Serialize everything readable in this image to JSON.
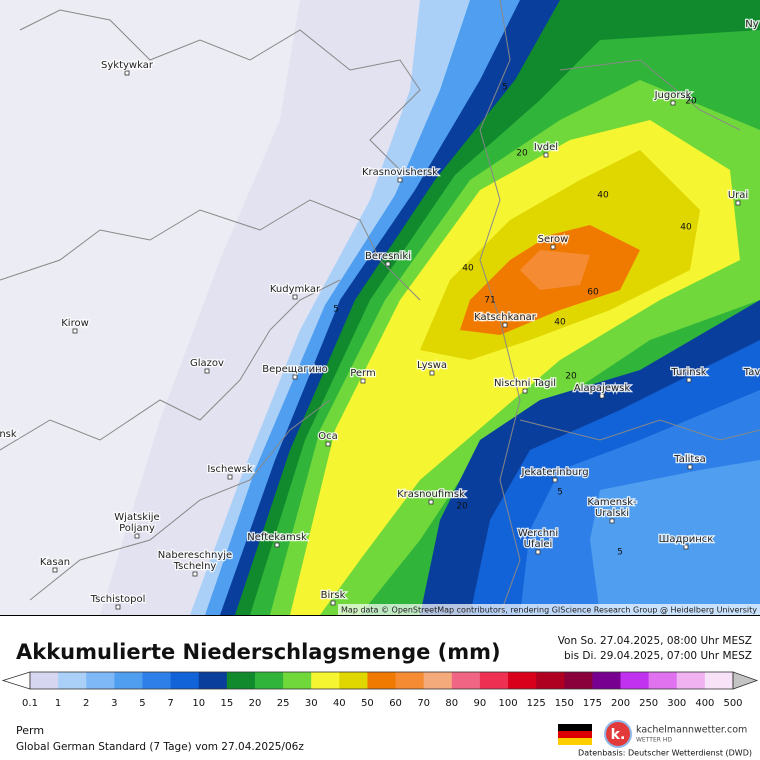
{
  "map": {
    "cities": [
      {
        "lines": [
          "Syktywkar"
        ]
      },
      {
        "lines": [
          "Krasnovishersk"
        ]
      },
      {
        "lines": [
          "Ivdel"
        ]
      },
      {
        "lines": [
          "Jugorsk"
        ]
      },
      {
        "lines": [
          "Urai"
        ]
      },
      {
        "lines": [
          "Serow"
        ]
      },
      {
        "lines": [
          "Beresniki"
        ]
      },
      {
        "lines": [
          "Kudymkar"
        ]
      },
      {
        "lines": [
          "Kirow"
        ]
      },
      {
        "lines": [
          "Katschkanar"
        ]
      },
      {
        "lines": [
          "Glazov"
        ]
      },
      {
        "lines": [
          "Верещагино"
        ]
      },
      {
        "lines": [
          "Perm"
        ]
      },
      {
        "lines": [
          "Lyswa"
        ]
      },
      {
        "lines": [
          "Nischni Tagil"
        ]
      },
      {
        "lines": [
          "Alapajewsk"
        ]
      },
      {
        "lines": [
          "Turinsk"
        ]
      },
      {
        "lines": [
          "Tav"
        ]
      },
      {
        "lines": [
          "Talitsa"
        ]
      },
      {
        "lines": [
          "Oca"
        ]
      },
      {
        "lines": [
          "Ischewsk"
        ]
      },
      {
        "lines": [
          "Jekaterinburg"
        ]
      },
      {
        "lines": [
          "Kamensk-",
          "Uralski"
        ]
      },
      {
        "lines": [
          "Krasnoufimsk"
        ]
      },
      {
        "lines": [
          "Wjatskije",
          "Poljany"
        ]
      },
      {
        "lines": [
          "Nabereschnyje",
          "Tschelny"
        ]
      },
      {
        "lines": [
          "Neftekamsk"
        ]
      },
      {
        "lines": [
          "Werchni",
          "Ufalei"
        ]
      },
      {
        "lines": [
          "Шадринск"
        ]
      },
      {
        "lines": [
          "Kasan"
        ]
      },
      {
        "lines": [
          "Birsk"
        ]
      },
      {
        "lines": [
          "Tschistopol"
        ]
      },
      {
        "lines": [
          "nsk"
        ]
      },
      {
        "lines": [
          "Ny"
        ]
      }
    ],
    "isolines": [
      71,
      40,
      40,
      40,
      60,
      40,
      20,
      20,
      20,
      20,
      5,
      5,
      5,
      5
    ],
    "attribution": "Map data © OpenStreetMap contributors, rendering GIScience Research Group @ Heidelberg University"
  },
  "title": "Akkumulierte Niederschlagsmenge (mm)",
  "period_from": "Von So. 27.04.2025, 08:00 Uhr MESZ",
  "period_to": "bis Di. 29.04.2025, 07:00 Uhr MESZ",
  "legend": {
    "labels": [
      0.1,
      1,
      2,
      3,
      5,
      7,
      10,
      15,
      20,
      25,
      30,
      40,
      50,
      60,
      70,
      80,
      90,
      100,
      125,
      150,
      175,
      200,
      250,
      300,
      400,
      500
    ],
    "colors": [
      "#d6d6f0",
      "#aad0f8",
      "#7eb8f6",
      "#4f9ef0",
      "#2e80e8",
      "#1262d8",
      "#0a3e9c",
      "#108a2c",
      "#30b43a",
      "#70d83a",
      "#f5f532",
      "#e0d600",
      "#f07a00",
      "#f58c34",
      "#f5aa7c",
      "#f06484",
      "#ee3052",
      "#d8001a",
      "#b00022",
      "#8a003a",
      "#780090",
      "#c032f0",
      "#e072f0",
      "#f0b2f0",
      "#f8e2f8"
    ]
  },
  "location": "Perm",
  "model": "Global German Standard (7 Tage) vom 27.04.2025/06z",
  "brand": "kachelmannwetter.com",
  "brand_sub": "WETTER HD",
  "source": "Datenbasis: Deutscher Wetterdienst (DWD)"
}
